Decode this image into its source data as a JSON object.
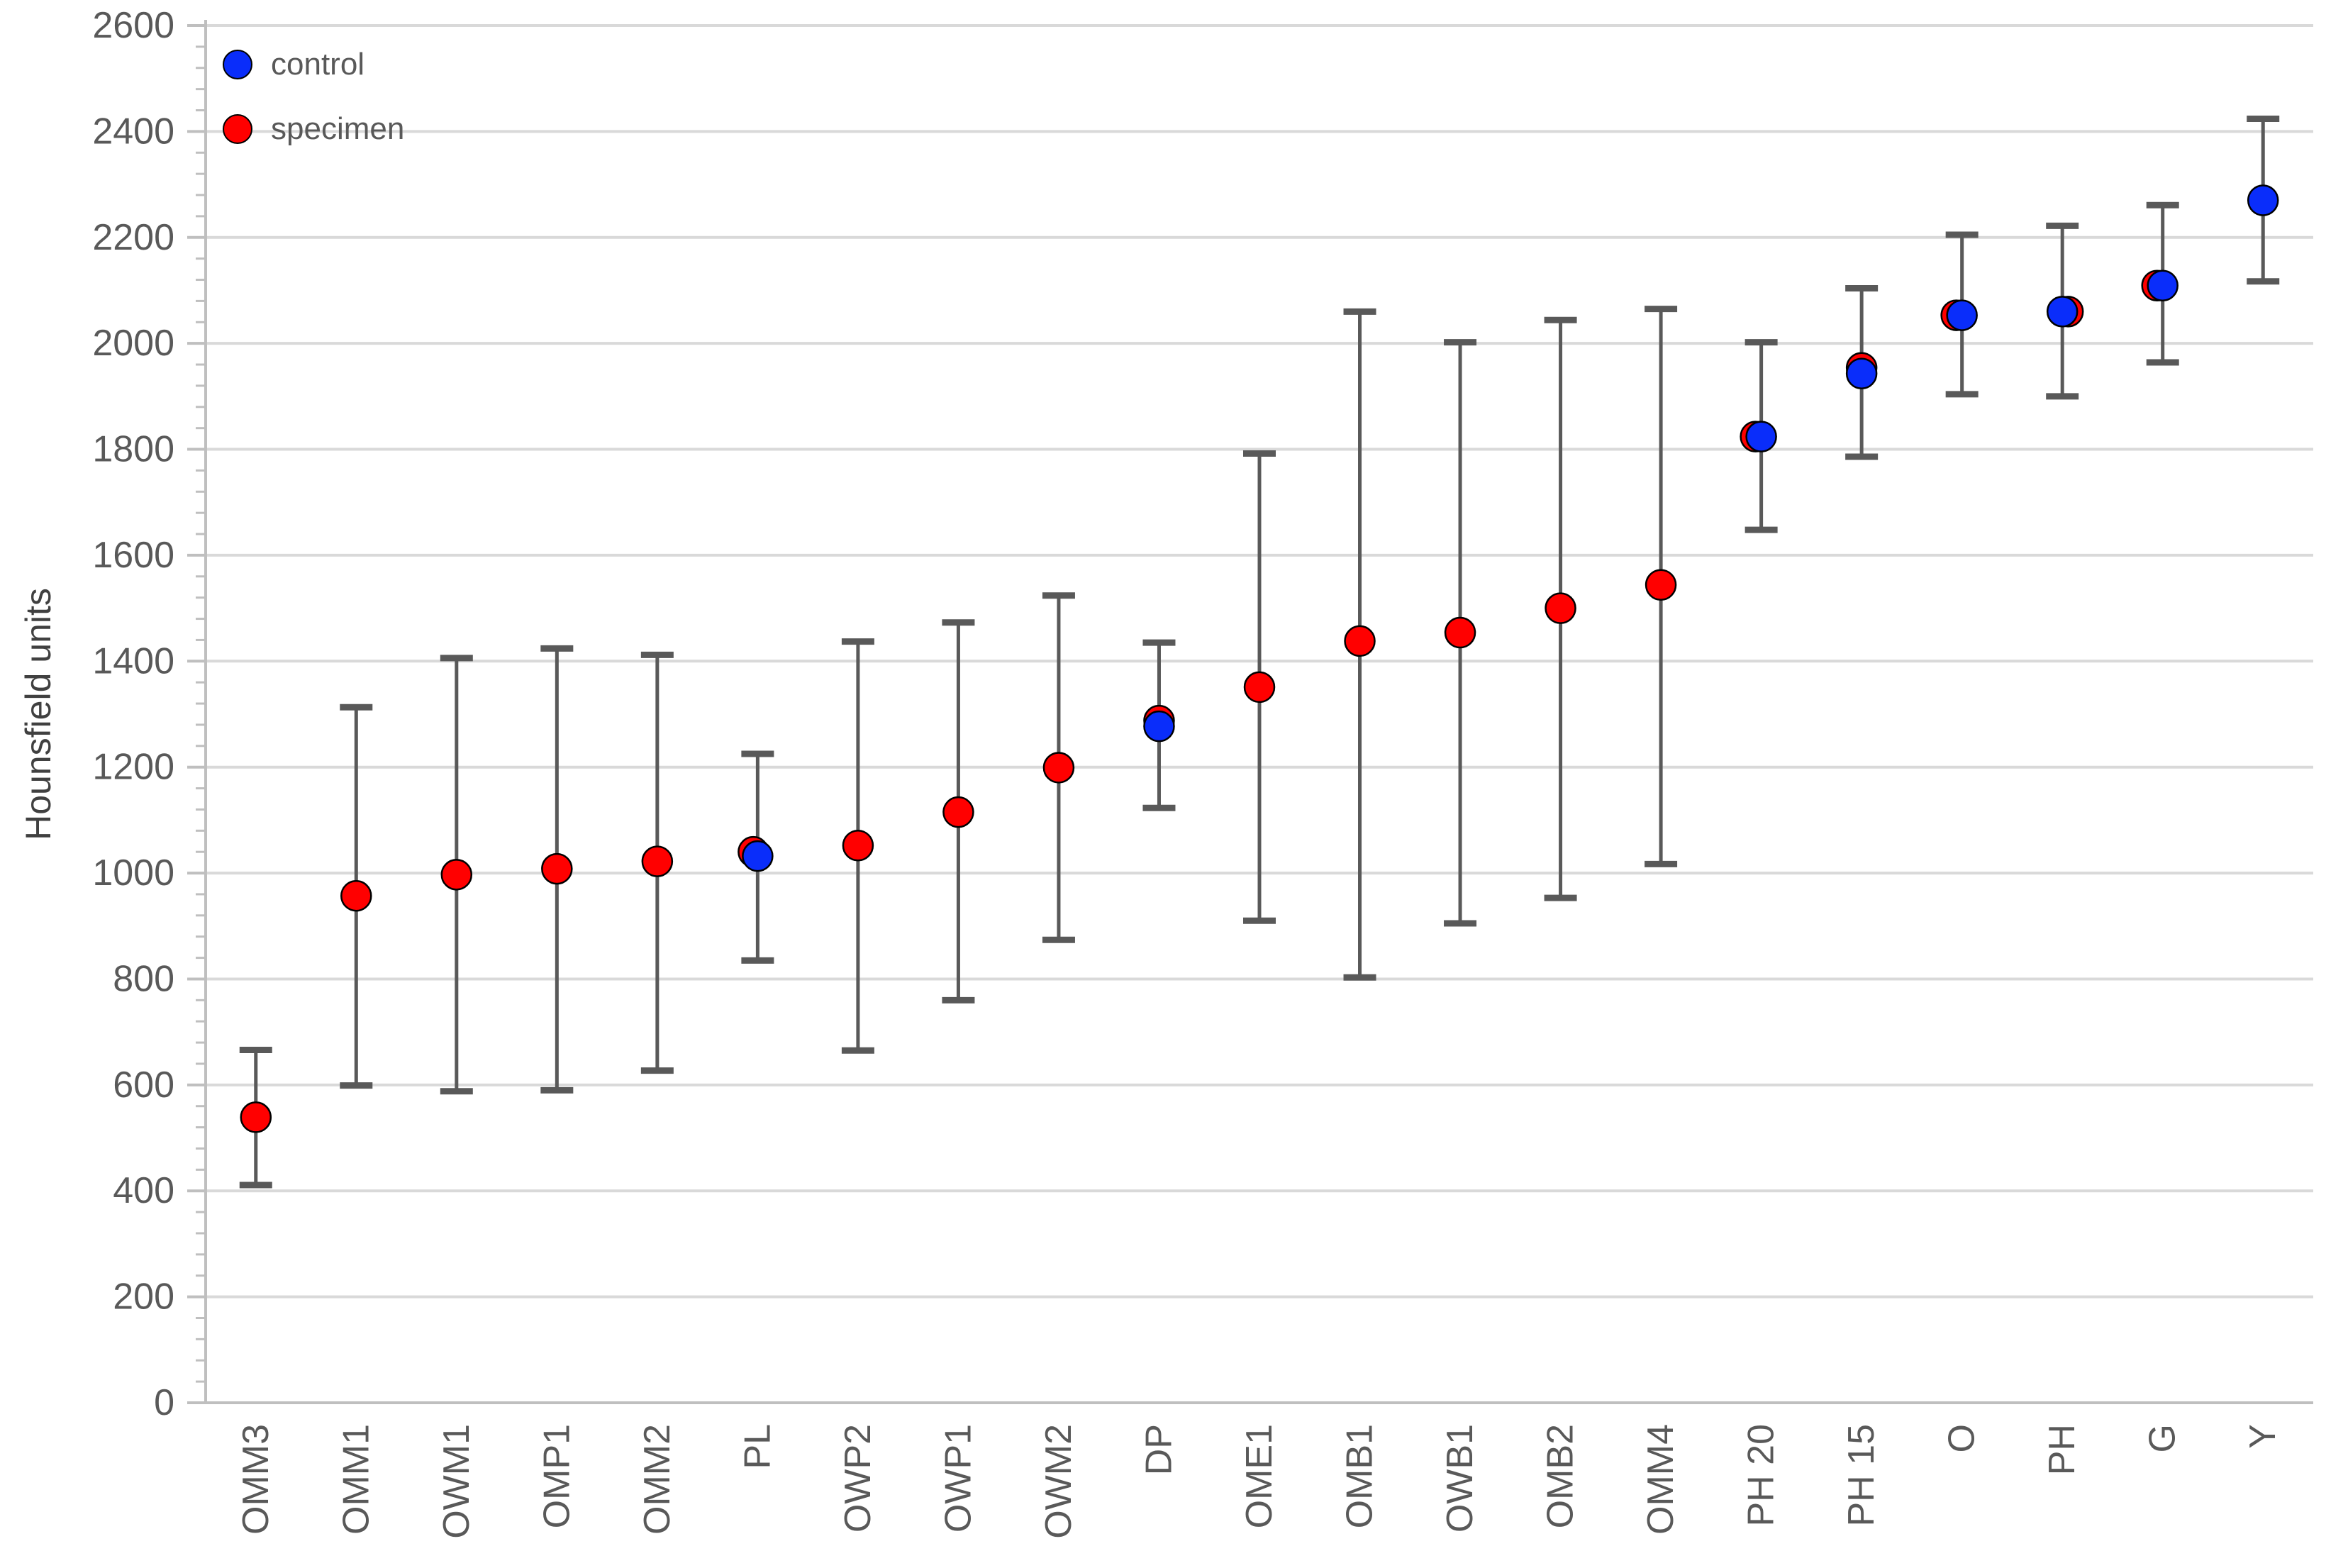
{
  "figure": {
    "ylabel": "Hounsfield units",
    "colors": {
      "control": "#0A2DFA",
      "specimen": "#FF0000",
      "error_bar": "#595959",
      "gridline": "#D9D9D9",
      "axis_line": "#BFBFBF",
      "tick_text": "#595959"
    }
  },
  "legend": {
    "items": [
      {
        "label": "control",
        "color": "#0A2DFA"
      },
      {
        "label": "specimen",
        "color": "#FF0000"
      }
    ]
  },
  "axes": {
    "y_tick_labels": [
      "0",
      "200",
      "400",
      "600",
      "800",
      "1000",
      "1200",
      "1400",
      "1600",
      "1800",
      "2000",
      "2200",
      "2400",
      "2600"
    ]
  },
  "chart_data": {
    "type": "scatter",
    "title": "",
    "xlabel": "",
    "ylabel": "Hounsfield units",
    "ylim": [
      0,
      2600
    ],
    "ytick_step": 200,
    "minor_tick_step": 40,
    "grid": "horizontal",
    "legend_position": "top-left-inside",
    "categories": [
      "OMM3",
      "OMM1",
      "OWM1",
      "OMP1",
      "OMM2",
      "PL",
      "OWP2",
      "OWP1",
      "OWM2",
      "DP",
      "OME1",
      "OMB1",
      "OWB1",
      "OMB2",
      "OMM4",
      "PH 20",
      "PH 15",
      "O",
      "PH",
      "G",
      "Y"
    ],
    "series": [
      {
        "name": "control",
        "color": "#0A2DFA",
        "values": [
          null,
          null,
          null,
          null,
          null,
          1032,
          null,
          null,
          null,
          1277,
          null,
          null,
          null,
          null,
          null,
          1824,
          1943,
          2053,
          2060,
          2109,
          2270
        ]
      },
      {
        "name": "specimen",
        "color": "#FF0000",
        "values": [
          539,
          957,
          997,
          1008,
          1022,
          1032,
          1052,
          1115,
          1199,
          1277,
          1351,
          1438,
          1454,
          1500,
          1544,
          1824,
          1943,
          2053,
          2060,
          2109,
          null
        ]
      }
    ],
    "error_bars": {
      "upper": [
        666,
        1313,
        1406,
        1424,
        1412,
        1225,
        1437,
        1473,
        1524,
        1435,
        1792,
        2060,
        2002,
        2044,
        2065,
        2002,
        2104,
        2205,
        2222,
        2261,
        2424
      ],
      "lower": [
        411,
        599,
        588,
        590,
        627,
        835,
        665,
        760,
        874,
        1123,
        910,
        803,
        905,
        953,
        1017,
        1648,
        1786,
        1904,
        1900,
        1964,
        2117
      ]
    },
    "points": [
      {
        "label": "OMM3",
        "control": null,
        "specimen": 539,
        "lo": 411,
        "hi": 666,
        "rim": null
      },
      {
        "label": "OMM1",
        "control": null,
        "specimen": 957,
        "lo": 599,
        "hi": 1313,
        "rim": null
      },
      {
        "label": "OWM1",
        "control": null,
        "specimen": 997,
        "lo": 588,
        "hi": 1406,
        "rim": null
      },
      {
        "label": "OMP1",
        "control": null,
        "specimen": 1008,
        "lo": 590,
        "hi": 1424,
        "rim": null
      },
      {
        "label": "OMM2",
        "control": null,
        "specimen": 1022,
        "lo": 627,
        "hi": 1412,
        "rim": null
      },
      {
        "label": "PL",
        "control": 1032,
        "specimen": 1032,
        "lo": 835,
        "hi": 1225,
        "rim": "top-left"
      },
      {
        "label": "OWP2",
        "control": null,
        "specimen": 1052,
        "lo": 665,
        "hi": 1437,
        "rim": null
      },
      {
        "label": "OWP1",
        "control": null,
        "specimen": 1115,
        "lo": 760,
        "hi": 1473,
        "rim": null
      },
      {
        "label": "OWM2",
        "control": null,
        "specimen": 1199,
        "lo": 874,
        "hi": 1524,
        "rim": null
      },
      {
        "label": "DP",
        "control": 1277,
        "specimen": 1277,
        "lo": 1123,
        "hi": 1435,
        "rim": "top"
      },
      {
        "label": "OME1",
        "control": null,
        "specimen": 1351,
        "lo": 910,
        "hi": 1792,
        "rim": null
      },
      {
        "label": "OMB1",
        "control": null,
        "specimen": 1438,
        "lo": 803,
        "hi": 2060,
        "rim": null
      },
      {
        "label": "OWB1",
        "control": null,
        "specimen": 1454,
        "lo": 905,
        "hi": 2002,
        "rim": null
      },
      {
        "label": "OMB2",
        "control": null,
        "specimen": 1500,
        "lo": 953,
        "hi": 2044,
        "rim": null
      },
      {
        "label": "OMM4",
        "control": null,
        "specimen": 1544,
        "lo": 1017,
        "hi": 2065,
        "rim": null
      },
      {
        "label": "PH 20",
        "control": 1824,
        "specimen": 1824,
        "lo": 1648,
        "hi": 2002,
        "rim": "left"
      },
      {
        "label": "PH 15",
        "control": 1943,
        "specimen": 1943,
        "lo": 1786,
        "hi": 2104,
        "rim": "top"
      },
      {
        "label": "O",
        "control": 2053,
        "specimen": 2053,
        "lo": 1904,
        "hi": 2205,
        "rim": "left"
      },
      {
        "label": "PH",
        "control": 2060,
        "specimen": 2060,
        "lo": 1900,
        "hi": 2222,
        "rim": "right"
      },
      {
        "label": "G",
        "control": 2109,
        "specimen": 2109,
        "lo": 1964,
        "hi": 2261,
        "rim": "left"
      },
      {
        "label": "Y",
        "control": 2270,
        "specimen": null,
        "lo": 2117,
        "hi": 2424,
        "rim": null
      }
    ]
  }
}
